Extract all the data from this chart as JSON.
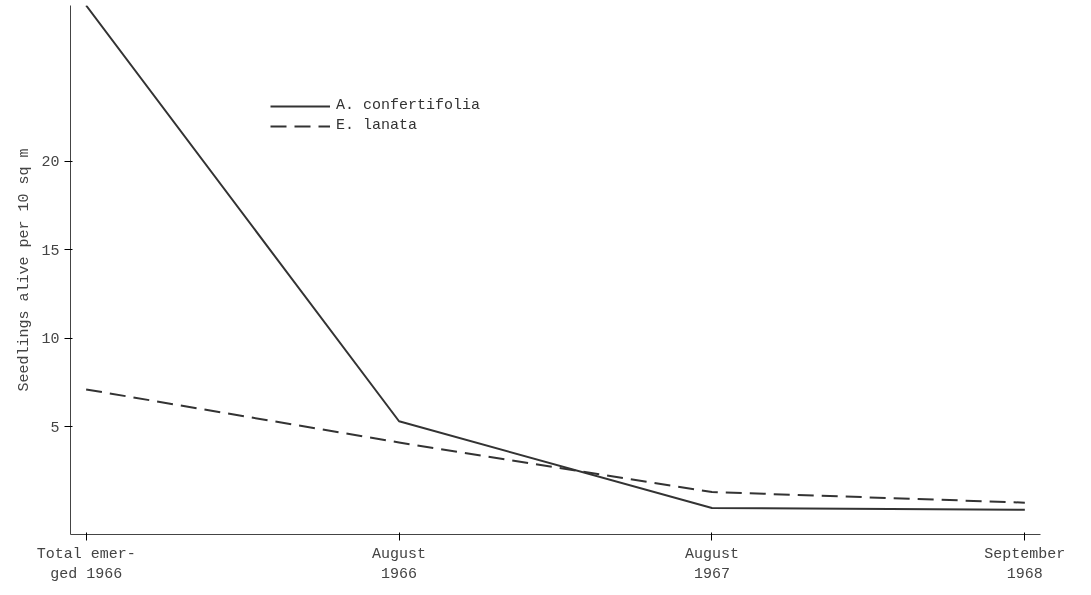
{
  "chart_data": {
    "type": "line",
    "ylabel": "Seedlings alive per 10 sq m",
    "categories": [
      "Total emer-\nged 1966",
      "August\n1966",
      "August\n1967",
      "September\n1968"
    ],
    "ylim": [
      -1.1,
      28.8
    ],
    "yticks": [
      5,
      10,
      15,
      20
    ],
    "grid": false,
    "legend": "top left",
    "series": [
      {
        "name": "A. confertifolia",
        "color": "#333333",
        "line_style": "solid",
        "values": [
          28.8,
          5.3,
          0.4,
          0.3
        ]
      },
      {
        "name": "E. lanata",
        "color": "#333333",
        "line_style": "dashed",
        "values": [
          7.1,
          4.1,
          1.3,
          0.7
        ]
      }
    ]
  }
}
